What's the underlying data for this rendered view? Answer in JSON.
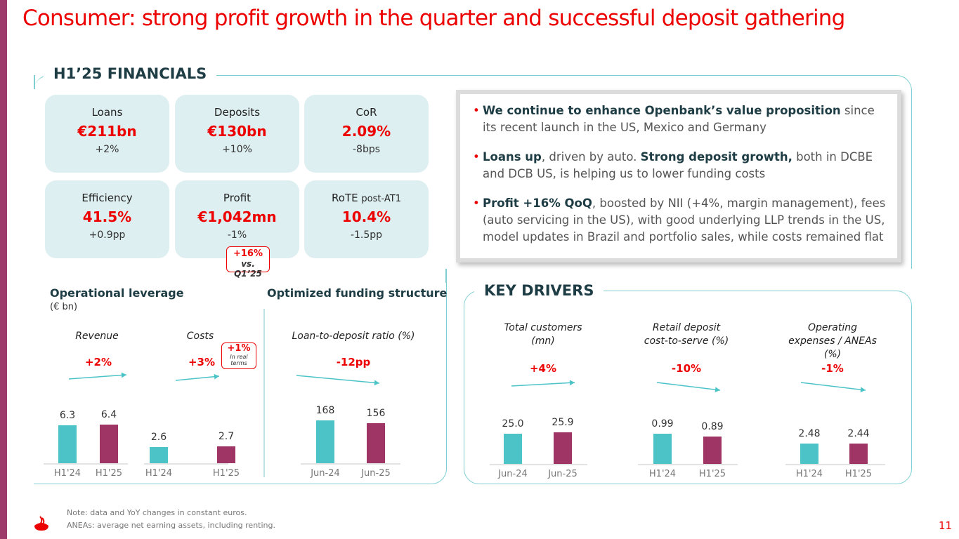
{
  "title": "Consumer: strong profit growth in the quarter and successful deposit gathering",
  "financials": {
    "heading": "H1’25 FINANCIALS",
    "cards": [
      {
        "label": "Loans",
        "value": "€211bn",
        "change": "+2%"
      },
      {
        "label": "Deposits",
        "value": "€130bn",
        "change": "+10%"
      },
      {
        "label": "CoR",
        "value": "2.09%",
        "change": "-8bps"
      },
      {
        "label": "Efficiency",
        "value": "41.5%",
        "change": "+0.9pp"
      },
      {
        "label": "Profit",
        "value": "€1,042mn",
        "change": "-1%"
      },
      {
        "label": "RoTE",
        "label_suffix": "post-AT1",
        "value": "10.4%",
        "change": "-1.5pp"
      }
    ],
    "profit_bubble": {
      "value": "+16%",
      "sub": "vs. Q1’25"
    }
  },
  "bullets": [
    {
      "bold": "We continue to enhance Openbank’s value proposition",
      "text": " since its recent launch in the US, Mexico and Germany"
    },
    {
      "bold": "Loans up",
      "text": ", driven by auto. ",
      "bold2": "Strong deposit growth,",
      "text2": " both in DCBE and DCB US, is helping us to lower funding costs"
    },
    {
      "bold": "Profit +16% QoQ",
      "text": ", boosted by NII (+4%, margin management), fees (auto servicing in the US), with good underlying LLP trends in the US, model updates in Brazil and portfolio sales, while costs remained flat"
    }
  ],
  "op_leverage": {
    "heading": "Operational leverage",
    "unit": "(€ bn)"
  },
  "funding": {
    "heading": "Optimized funding structure"
  },
  "key_drivers": {
    "heading": "KEY DRIVERS"
  },
  "costs_bubble": {
    "value": "+1%",
    "sub": "In real terms"
  },
  "colors": {
    "prev": "#4CC3C7",
    "curr": "#9E3565",
    "accent": "#EC0000"
  },
  "chart_data": [
    {
      "type": "bar",
      "title": "Revenue",
      "change": "+2%",
      "categories": [
        "H1'24",
        "H1'25"
      ],
      "values": [
        6.3,
        6.4
      ],
      "labels": [
        "6.3",
        "6.4"
      ]
    },
    {
      "type": "bar",
      "title": "Costs",
      "change": "+3%",
      "categories": [
        "H1'24",
        "H1'25"
      ],
      "values": [
        2.6,
        2.7
      ],
      "labels": [
        "2.6",
        "2.7"
      ]
    },
    {
      "type": "bar",
      "title": "Loan-to-deposit ratio (%)",
      "change": "-12pp",
      "categories": [
        "Jun-24",
        "Jun-25"
      ],
      "values": [
        168,
        156
      ],
      "labels": [
        "168",
        "156"
      ]
    },
    {
      "type": "bar",
      "title": "Total customers (mn)",
      "change": "+4%",
      "categories": [
        "Jun-24",
        "Jun-25"
      ],
      "values": [
        25.0,
        25.9
      ],
      "labels": [
        "25.0",
        "25.9"
      ]
    },
    {
      "type": "bar",
      "title": "Retail deposit cost-to-serve (%)",
      "change": "-10%",
      "categories": [
        "H1'24",
        "H1'25"
      ],
      "values": [
        0.99,
        0.89
      ],
      "labels": [
        "0.99",
        "0.89"
      ]
    },
    {
      "type": "bar",
      "title": "Operating expenses / ANEAs (%)",
      "change": "-1%",
      "categories": [
        "H1'24",
        "H1'25"
      ],
      "values": [
        2.48,
        2.44
      ],
      "labels": [
        "2.48",
        "2.44"
      ]
    }
  ],
  "notes": [
    "Note: data and YoY changes in constant euros.",
    "ANEAs: average net earning assets, including renting."
  ],
  "page_number": "11"
}
